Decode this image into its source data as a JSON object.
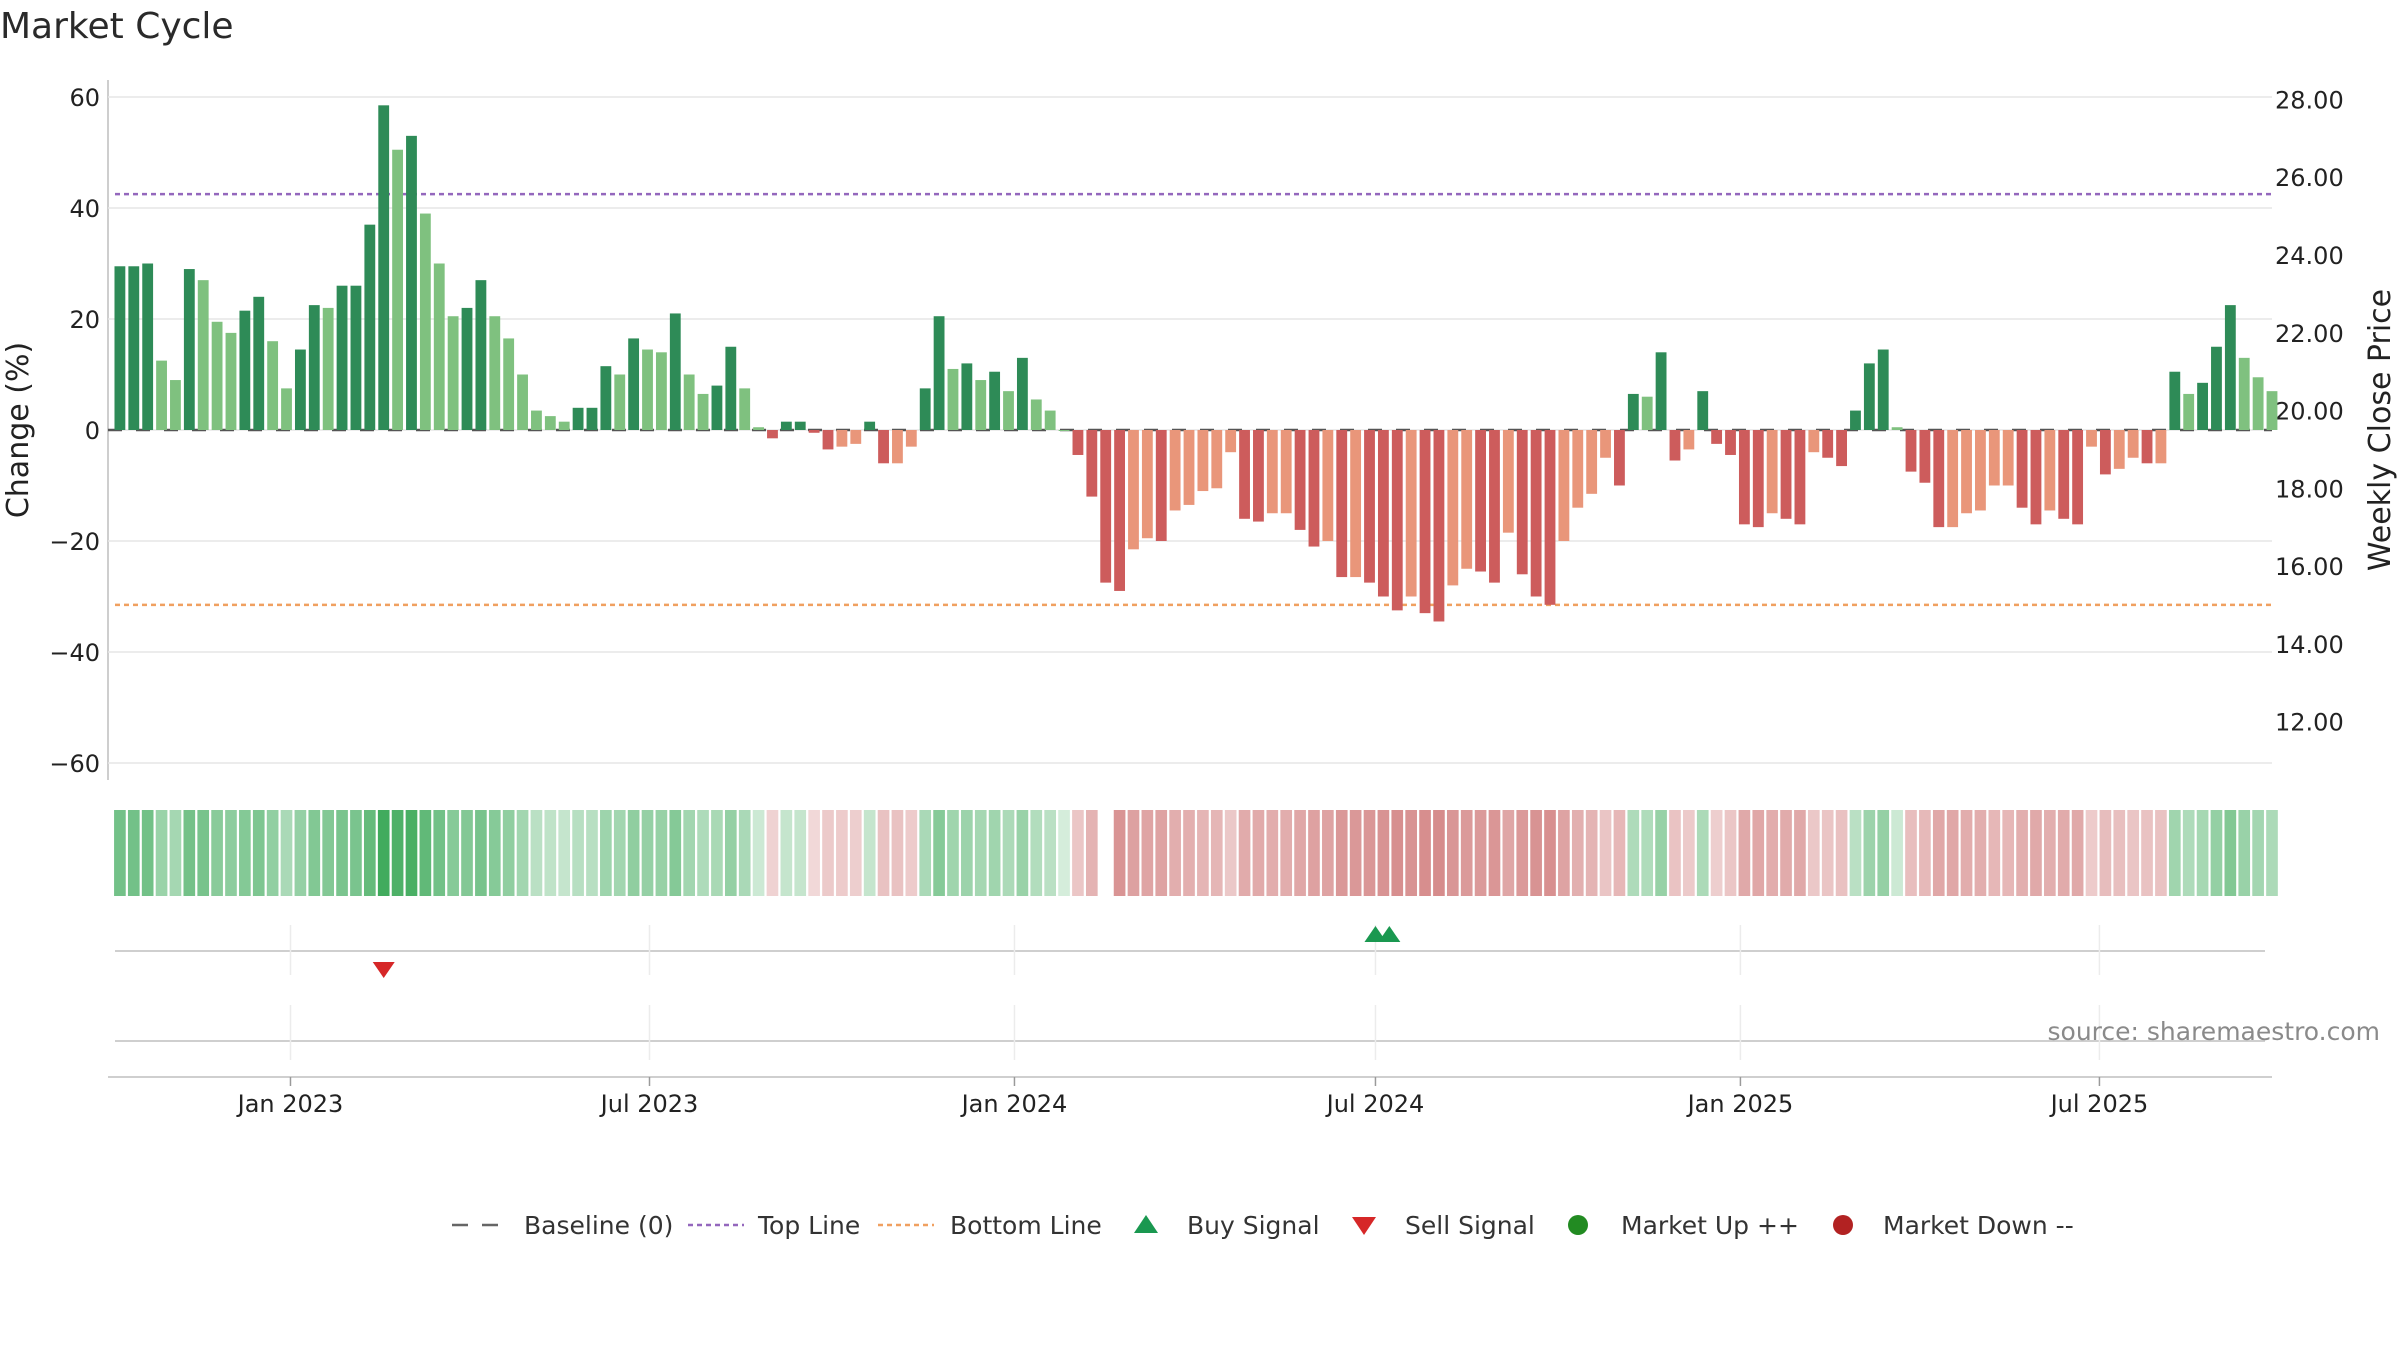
{
  "chart_data": {
    "type": "bar",
    "title": "Market Cycle",
    "ylabel": "Change (%)",
    "y2label": "Weekly Close Price",
    "ylim": [
      -60,
      60
    ],
    "yticks": [
      60,
      40,
      20,
      0,
      -20,
      -40,
      -60
    ],
    "yticks_display": [
      "60",
      "40",
      "20",
      "0",
      "−20",
      "−40",
      "−60"
    ],
    "y2lim": [
      10.5,
      28.5
    ],
    "y2ticks": [
      "28.00",
      "26.00",
      "24.00",
      "22.00",
      "20.00",
      "18.00",
      "16.00",
      "14.00",
      "12.00"
    ],
    "y2tick_values": [
      28,
      26,
      24,
      22,
      20,
      18,
      16,
      14,
      12
    ],
    "x_date_range": [
      "2022-10-01",
      "2025-09-26"
    ],
    "xticks": [
      {
        "date": "2023-01-01",
        "label": "Jan 2023"
      },
      {
        "date": "2023-07-01",
        "label": "Jul 2023"
      },
      {
        "date": "2024-01-01",
        "label": "Jan 2024"
      },
      {
        "date": "2024-07-01",
        "label": "Jul 2024"
      },
      {
        "date": "2025-01-01",
        "label": "Jan 2025"
      },
      {
        "date": "2025-07-01",
        "label": "Jul 2025"
      }
    ],
    "start_date": "2022-10-07",
    "values": [
      29.5,
      29.5,
      30,
      12.5,
      9,
      29,
      27,
      19.5,
      17.5,
      21.5,
      24,
      16,
      7.5,
      14.5,
      22.5,
      22,
      26,
      26,
      37,
      58.5,
      50.5,
      53,
      39,
      30,
      20.5,
      22,
      27,
      20.5,
      16.5,
      10,
      3.5,
      2.5,
      1.5,
      4,
      4,
      11.5,
      10,
      16.5,
      14.5,
      14,
      21,
      10,
      6.5,
      8,
      15,
      7.5,
      0.5,
      -1.5,
      1.5,
      1.5,
      -0.5,
      -3.5,
      -3,
      -2.5,
      1.5,
      -6,
      -6,
      -3,
      7.5,
      20.5,
      11,
      12,
      9,
      10.5,
      7,
      13,
      5.5,
      3.5,
      0,
      -4.5,
      -12,
      -27.5,
      -29,
      -21.5,
      -19.5,
      -20,
      -14.5,
      -13.5,
      -11,
      -10.5,
      -4,
      -16,
      -16.5,
      -15,
      -15,
      -18,
      -21,
      -20,
      -26.5,
      -26.5,
      -27.5,
      -30,
      -32.5,
      -30,
      -33,
      -34.5,
      -28,
      -25,
      -25.5,
      -27.5,
      -18.5,
      -26,
      -30,
      -31.5,
      -20,
      -14,
      -11.5,
      -5,
      -10,
      6.5,
      6,
      14,
      -5.5,
      -3.5,
      7,
      -2.5,
      -4.5,
      -17,
      -17.5,
      -15,
      -16,
      -17,
      -4,
      -5,
      -6.5,
      3.5,
      12,
      14.5,
      0.5,
      -7.5,
      -9.5,
      -17.5,
      -17.5,
      -15,
      -14.5,
      -10,
      -10,
      -14,
      -17,
      -14.5,
      -16,
      -17,
      -3,
      -8,
      -7,
      -5,
      -6,
      -6,
      10.5,
      6.5,
      8.5,
      15,
      22.5,
      13,
      9.5,
      7
    ],
    "strip_gap_index": 71,
    "top_line": 42.5,
    "bottom_line": -31.5,
    "baseline": 0,
    "buy_signals": [
      "2024-07-01",
      "2024-07-08"
    ],
    "sell_signals": [
      "2023-02-17"
    ],
    "legend": [
      {
        "label": "Baseline (0)",
        "kind": "dash-line",
        "color": "#666666"
      },
      {
        "label": "Top Line",
        "kind": "dotted-line",
        "color": "#9467bd"
      },
      {
        "label": "Bottom Line",
        "kind": "dotted-line",
        "color": "#f0a060"
      },
      {
        "label": "Buy Signal",
        "kind": "triangle-up",
        "color": "#1a9850"
      },
      {
        "label": "Sell Signal",
        "kind": "triangle-down",
        "color": "#d62728"
      },
      {
        "label": "Market Up ++",
        "kind": "dot",
        "color": "#228b22"
      },
      {
        "label": "Market Down --",
        "kind": "dot",
        "color": "#b22222"
      }
    ],
    "legend_position": "bottom-center",
    "source": "source: sharemaestro.com",
    "colors": {
      "up_strong": "#2e8b57",
      "up_weak": "#7fc17f",
      "down_strong": "#cd5c5c",
      "down_weak": "#e9967a",
      "strip_up": "#41ab5d",
      "strip_down": "#cb6d6d",
      "grid": "#e6e6e6",
      "axis": "#bdbdbd"
    }
  }
}
